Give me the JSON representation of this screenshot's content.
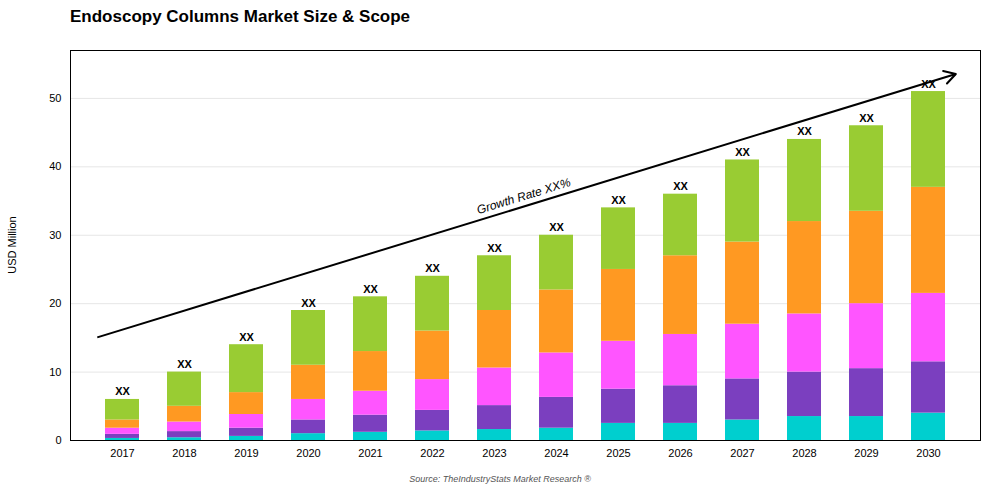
{
  "chart_data": {
    "type": "bar",
    "stacked": true,
    "title": "Endoscopy Columns Market Size & Scope",
    "ylabel": "USD Million",
    "source": "Source: TheIndustryStats Market Research ®",
    "categories": [
      "2017",
      "2018",
      "2019",
      "2020",
      "2021",
      "2022",
      "2023",
      "2024",
      "2025",
      "2026",
      "2027",
      "2028",
      "2029",
      "2030"
    ],
    "series": [
      {
        "color": "#00CFCF",
        "values": [
          0.3,
          0.4,
          0.6,
          1.0,
          1.2,
          1.4,
          1.6,
          1.8,
          2.5,
          2.5,
          3.0,
          3.5,
          3.5,
          4.0
        ]
      },
      {
        "color": "#7B3FBF",
        "values": [
          0.6,
          0.9,
          1.2,
          2.0,
          2.5,
          3.0,
          3.5,
          4.5,
          5.0,
          5.5,
          6.0,
          6.5,
          7.0,
          7.5
        ]
      },
      {
        "color": "#FF55FF",
        "values": [
          0.9,
          1.4,
          2.0,
          3.0,
          3.5,
          4.5,
          5.5,
          6.5,
          7.0,
          7.5,
          8.0,
          8.5,
          9.5,
          10.0
        ]
      },
      {
        "color": "#FF9922",
        "values": [
          1.2,
          2.3,
          3.2,
          5.0,
          5.8,
          7.1,
          8.4,
          9.2,
          10.5,
          11.5,
          12.0,
          13.5,
          13.5,
          15.5
        ]
      },
      {
        "color": "#99CC33",
        "values": [
          3.0,
          5.0,
          7.0,
          8.0,
          8.0,
          8.0,
          8.0,
          8.0,
          9.0,
          9.0,
          12.0,
          12.0,
          12.5,
          14.0
        ]
      }
    ],
    "ylim": [
      0,
      57
    ],
    "yticks": [
      0,
      10,
      20,
      30,
      40,
      50
    ],
    "grid": true,
    "annotations": [
      {
        "text": "XX",
        "x": "2017"
      },
      {
        "text": "XX",
        "x": "2018"
      },
      {
        "text": "XX",
        "x": "2019"
      },
      {
        "text": "XX",
        "x": "2020"
      },
      {
        "text": "XX",
        "x": "2021"
      },
      {
        "text": "XX",
        "x": "2022"
      },
      {
        "text": "XX",
        "x": "2023"
      },
      {
        "text": "XX",
        "x": "2024"
      },
      {
        "text": "XX",
        "x": "2025"
      },
      {
        "text": "XX",
        "x": "2026"
      },
      {
        "text": "XX",
        "x": "2027"
      },
      {
        "text": "XX",
        "x": "2028"
      },
      {
        "text": "XX",
        "x": "2029"
      },
      {
        "text": "XX",
        "x": "2030"
      },
      {
        "text": "Growth Rate XX%",
        "arrow": {
          "from": {
            "x": "2017",
            "y": 15
          },
          "to": {
            "x": "2030",
            "y": 53.5
          }
        }
      }
    ]
  }
}
